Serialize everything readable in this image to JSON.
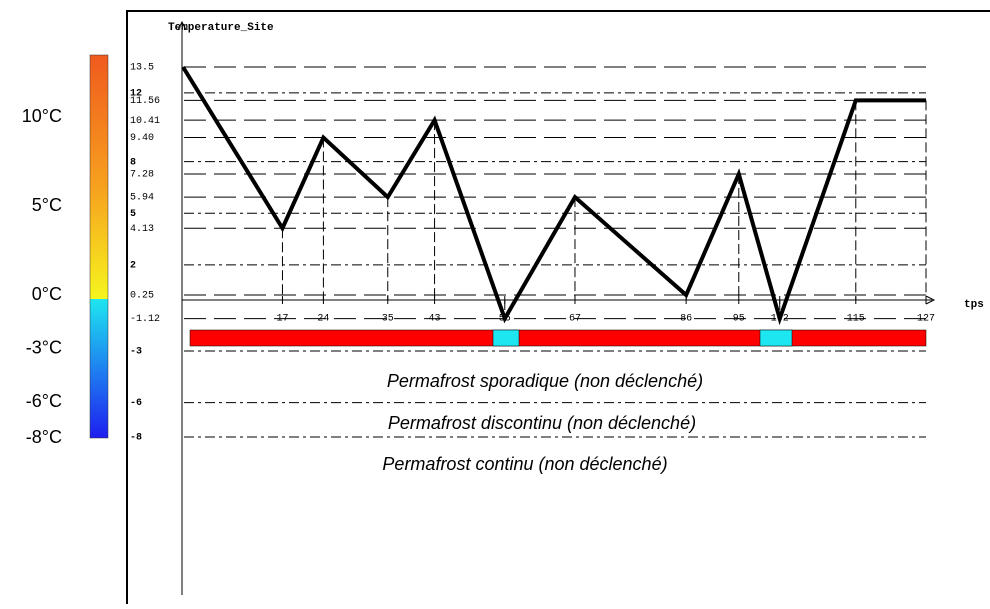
{
  "colorbar": {
    "labels": [
      "10°C",
      "5°C",
      "0°C",
      "-3°C",
      "-6°C",
      "-8°C"
    ],
    "values": [
      10,
      5,
      0,
      -3,
      -6,
      -8
    ]
  },
  "chart_data": {
    "type": "line",
    "title": "Temperature_Site",
    "x_label": "tps",
    "x": [
      0,
      17,
      24,
      35,
      43,
      55,
      67,
      86,
      95,
      102,
      115,
      127
    ],
    "values": [
      13.5,
      4.13,
      9.4,
      5.94,
      10.41,
      -1.12,
      5.94,
      0.25,
      7.28,
      -1.12,
      11.56,
      11.56
    ],
    "color": "#000000",
    "xlim": [
      0,
      127
    ],
    "xticks": [
      17,
      24,
      35,
      43,
      55,
      67,
      86,
      95,
      102,
      115,
      127
    ],
    "ylim": [
      -8,
      13.5
    ],
    "yticks": [
      13.5,
      12,
      11.56,
      10.41,
      {
        "value": 9.4,
        "label": "9.40"
      },
      8,
      7.28,
      5.94,
      5,
      4.13,
      2,
      0.25,
      -1.12,
      -3,
      -6,
      -8
    ],
    "grid": true
  },
  "zones": [
    "Permafrost sporadique (non déclenché)",
    "Permafrost discontinu (non déclenché)",
    "Permafrost continu (non déclenché)"
  ]
}
